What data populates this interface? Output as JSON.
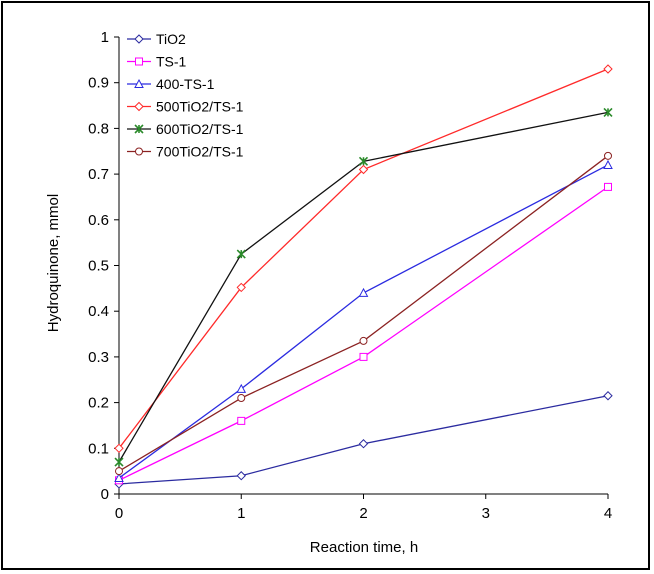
{
  "chart_data": {
    "type": "line",
    "xlabel": "Reaction time, h",
    "ylabel": "Hydroquinone, mmol",
    "xlim": [
      0,
      4
    ],
    "ylim": [
      0,
      1
    ],
    "x_ticks": [
      "0",
      "1",
      "2",
      "3",
      "4"
    ],
    "y_ticks": [
      "0",
      "0.1",
      "0.2",
      "0.3",
      "0.4",
      "0.5",
      "0.6",
      "0.7",
      "0.8",
      "0.9",
      "1"
    ],
    "grid": false,
    "legend_position": "top-left",
    "series": [
      {
        "name": "TiO2",
        "color": "#2b2ba0",
        "marker": "diamond",
        "x": [
          0,
          1,
          2,
          4
        ],
        "y": [
          0.022,
          0.04,
          0.11,
          0.215
        ]
      },
      {
        "name": "TS-1",
        "color": "#ff00ff",
        "marker": "square",
        "x": [
          0,
          1,
          2,
          4
        ],
        "y": [
          0.03,
          0.16,
          0.3,
          0.672
        ]
      },
      {
        "name": "400-TS-1",
        "color": "#2b2be0",
        "marker": "triangle",
        "x": [
          0,
          1,
          2,
          4
        ],
        "y": [
          0.035,
          0.23,
          0.44,
          0.72
        ]
      },
      {
        "name": "500TiO2/TS-1",
        "color": "#ff2a2a",
        "marker": "diamond",
        "x": [
          0,
          1,
          2,
          4
        ],
        "y": [
          0.1,
          0.452,
          0.71,
          0.93
        ]
      },
      {
        "name": "600TiO2/TS-1",
        "color": "#111111",
        "marker": "star",
        "marker_color": "#2a8a2a",
        "x": [
          0,
          1,
          2,
          4
        ],
        "y": [
          0.07,
          0.525,
          0.728,
          0.835
        ]
      },
      {
        "name": "700TiO2/TS-1",
        "color": "#8b2222",
        "marker": "circle",
        "x": [
          0,
          1,
          2,
          4
        ],
        "y": [
          0.05,
          0.21,
          0.335,
          0.74
        ]
      }
    ]
  }
}
